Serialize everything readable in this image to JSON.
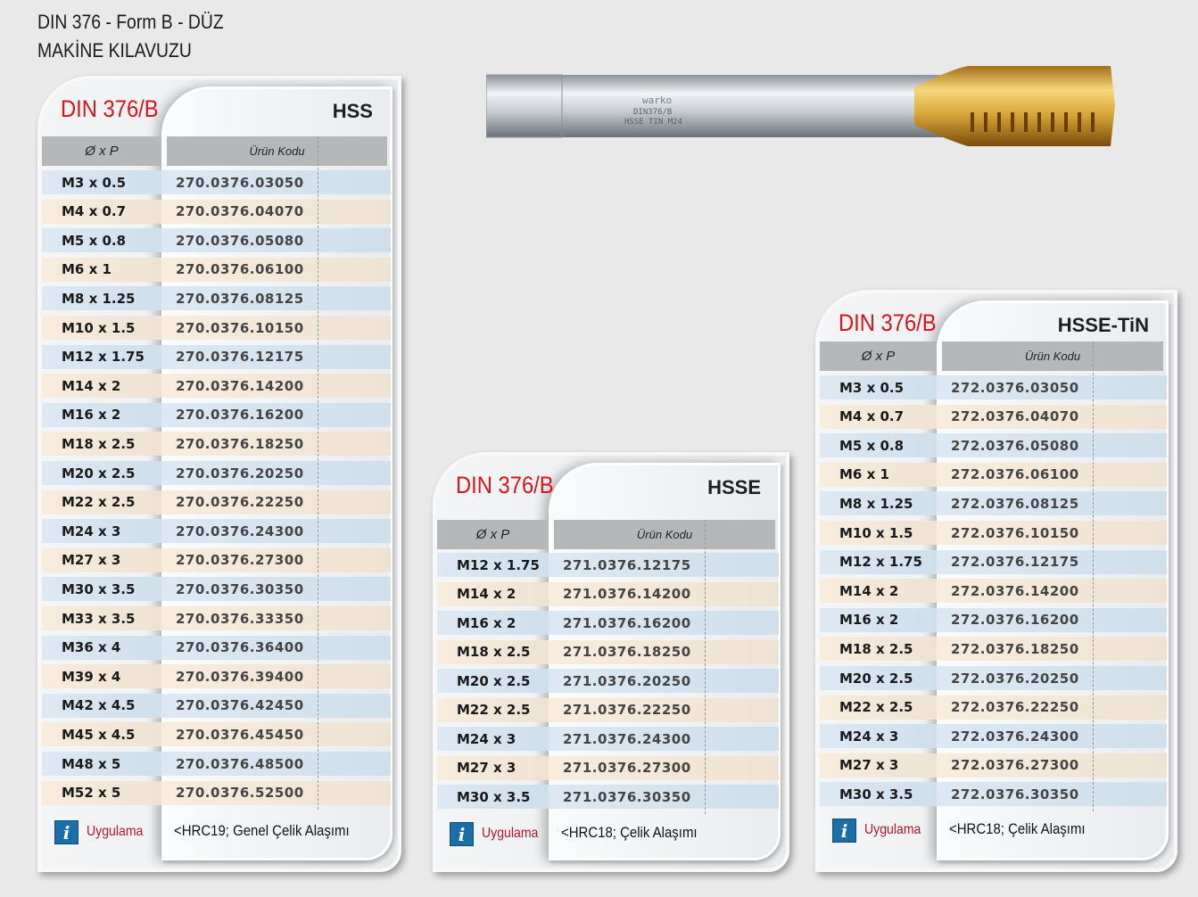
{
  "header": {
    "line1": "DIN 376 - Form B - DÜZ",
    "line2": "MAKİNE KILAVUZU"
  },
  "tool_image": {
    "engraving": "warko DIN376/B HSSE TIN M24",
    "colors": {
      "shank": "#c9ced6",
      "tin": "#d9a73a"
    }
  },
  "panels": [
    {
      "id": "hss",
      "standard": "DIN 376/B",
      "material": "HSS",
      "col_size": "Ø x P",
      "col_code": "Ürün Kodu",
      "app_label": "Uygulama",
      "note": "<HRC19;  Genel Çelik Alaşımı",
      "rows": [
        [
          "M3 x 0.5",
          "270.0376.03050"
        ],
        [
          "M4 x 0.7",
          "270.0376.04070"
        ],
        [
          "M5 x 0.8",
          "270.0376.05080"
        ],
        [
          "M6 x 1",
          "270.0376.06100"
        ],
        [
          "M8 x 1.25",
          "270.0376.08125"
        ],
        [
          "M10 x 1.5",
          "270.0376.10150"
        ],
        [
          "M12 x 1.75",
          "270.0376.12175"
        ],
        [
          "M14 x 2",
          "270.0376.14200"
        ],
        [
          "M16 x 2",
          "270.0376.16200"
        ],
        [
          "M18 x 2.5",
          "270.0376.18250"
        ],
        [
          "M20 x 2.5",
          "270.0376.20250"
        ],
        [
          "M22 x 2.5",
          "270.0376.22250"
        ],
        [
          "M24 x 3",
          "270.0376.24300"
        ],
        [
          "M27 x 3",
          "270.0376.27300"
        ],
        [
          "M30 x 3.5",
          "270.0376.30350"
        ],
        [
          "M33 x 3.5",
          "270.0376.33350"
        ],
        [
          "M36 x 4",
          "270.0376.36400"
        ],
        [
          "M39 x 4",
          "270.0376.39400"
        ],
        [
          "M42 x 4.5",
          "270.0376.42450"
        ],
        [
          "M45 x 4.5",
          "270.0376.45450"
        ],
        [
          "M48 x 5",
          "270.0376.48500"
        ],
        [
          "M52 x 5",
          "270.0376.52500"
        ]
      ]
    },
    {
      "id": "hsse",
      "standard": "DIN 376/B",
      "material": "HSSE",
      "col_size": "Ø x P",
      "col_code": "Ürün Kodu",
      "app_label": "Uygulama",
      "note": "<HRC18;  Çelik Alaşımı",
      "rows": [
        [
          "M12 x 1.75",
          "271.0376.12175"
        ],
        [
          "M14 x 2",
          "271.0376.14200"
        ],
        [
          "M16 x 2",
          "271.0376.16200"
        ],
        [
          "M18 x 2.5",
          "271.0376.18250"
        ],
        [
          "M20 x 2.5",
          "271.0376.20250"
        ],
        [
          "M22 x 2.5",
          "271.0376.22250"
        ],
        [
          "M24 x 3",
          "271.0376.24300"
        ],
        [
          "M27 x 3",
          "271.0376.27300"
        ],
        [
          "M30 x 3.5",
          "271.0376.30350"
        ]
      ]
    },
    {
      "id": "hsse-tin",
      "standard": "DIN 376/B",
      "material": "HSSE-TiN",
      "col_size": "Ø x P",
      "col_code": "Ürün Kodu",
      "app_label": "Uygulama",
      "note": "<HRC18;  Çelik Alaşımı",
      "rows": [
        [
          "M3 x 0.5",
          "272.0376.03050"
        ],
        [
          "M4 x 0.7",
          "272.0376.04070"
        ],
        [
          "M5 x 0.8",
          "272.0376.05080"
        ],
        [
          "M6 x 1",
          "272.0376.06100"
        ],
        [
          "M8 x 1.25",
          "272.0376.08125"
        ],
        [
          "M10 x 1.5",
          "272.0376.10150"
        ],
        [
          "M12 x 1.75",
          "272.0376.12175"
        ],
        [
          "M14 x 2",
          "272.0376.14200"
        ],
        [
          "M16 x 2",
          "272.0376.16200"
        ],
        [
          "M18 x 2.5",
          "272.0376.18250"
        ],
        [
          "M20 x 2.5",
          "272.0376.20250"
        ],
        [
          "M22 x 2.5",
          "272.0376.22250"
        ],
        [
          "M24 x 3",
          "272.0376.24300"
        ],
        [
          "M27 x 3",
          "272.0376.27300"
        ],
        [
          "M30 x 3.5",
          "272.0376.30350"
        ]
      ]
    }
  ]
}
